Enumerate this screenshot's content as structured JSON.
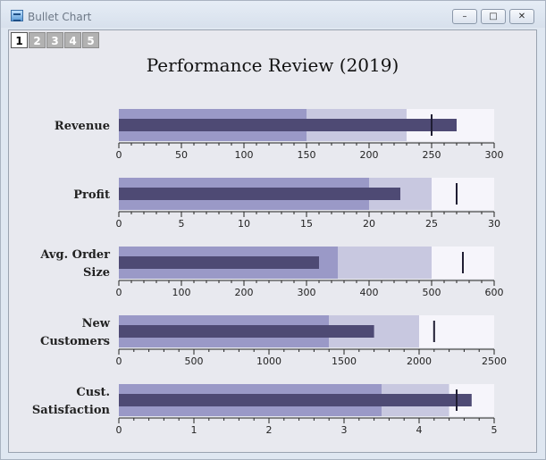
{
  "window": {
    "title": "Bullet Chart",
    "controls": {
      "minimize": "–",
      "maximize": "□",
      "close": "✕"
    }
  },
  "tabs": [
    {
      "label": "1",
      "active": true
    },
    {
      "label": "2",
      "active": false
    },
    {
      "label": "3",
      "active": false
    },
    {
      "label": "4",
      "active": false
    },
    {
      "label": "5",
      "active": false
    }
  ],
  "chart_data": {
    "type": "bullet",
    "title": "Performance Review (2019)",
    "colors": {
      "range_low": "#9a99c7",
      "range_mid": "#c8c8e0",
      "range_high": "#f6f5fb",
      "bar": "#4e4a74",
      "target": "#1f1d33"
    },
    "rows": [
      {
        "label": [
          "Revenue"
        ],
        "max": 300,
        "ticks": [
          0,
          50,
          100,
          150,
          200,
          250,
          300
        ],
        "minor_step": 10,
        "ranges": [
          150,
          230,
          300
        ],
        "value": 270,
        "target": 250
      },
      {
        "label": [
          "Profit"
        ],
        "max": 30,
        "ticks": [
          0,
          5,
          10,
          15,
          20,
          25,
          30
        ],
        "minor_step": 1,
        "ranges": [
          20,
          25,
          30
        ],
        "value": 22.5,
        "target": 27
      },
      {
        "label": [
          "Avg. Order",
          "Size"
        ],
        "max": 600,
        "ticks": [
          0,
          100,
          200,
          300,
          400,
          500,
          600
        ],
        "minor_step": 20,
        "ranges": [
          350,
          500,
          600
        ],
        "value": 320,
        "target": 550
      },
      {
        "label": [
          "New",
          "Customers"
        ],
        "max": 2500,
        "ticks": [
          0,
          500,
          1000,
          1500,
          2000,
          2500
        ],
        "minor_step": 100,
        "ranges": [
          1400,
          2000,
          2500
        ],
        "value": 1700,
        "target": 2100
      },
      {
        "label": [
          "Cust.",
          "Satisfaction"
        ],
        "max": 5,
        "ticks": [
          0,
          1,
          2,
          3,
          4,
          5
        ],
        "minor_step": 0.2,
        "ranges": [
          3.5,
          4.4,
          5
        ],
        "value": 4.7,
        "target": 4.5
      }
    ]
  }
}
